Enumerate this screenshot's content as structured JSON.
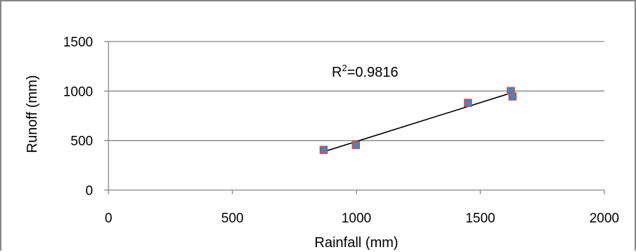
{
  "chart_data": {
    "type": "scatter",
    "title": "",
    "xlabel": "Rainfall (mm)",
    "ylabel": "Runoff (mm)",
    "xlim": [
      0,
      2000
    ],
    "ylim": [
      0,
      1500
    ],
    "x_ticks": [
      0,
      500,
      1000,
      1500,
      2000
    ],
    "y_ticks": [
      0,
      500,
      1000,
      1500
    ],
    "grid": "horizontal",
    "legend": "none",
    "series": [
      {
        "marker_fill": "#4f81bd",
        "marker_edge": "#c0504d",
        "points": [
          {
            "x": 868,
            "y": 405
          },
          {
            "x": 998,
            "y": 455
          },
          {
            "x": 1450,
            "y": 880
          },
          {
            "x": 1623,
            "y": 1000
          },
          {
            "x": 1630,
            "y": 945
          }
        ]
      }
    ],
    "trendline": {
      "x": [
        868,
        1630
      ],
      "y": [
        387,
        985
      ],
      "color": "#000000"
    },
    "annotations": [
      {
        "text_base": "R",
        "superscript": "2",
        "text_rest": "=0.9816",
        "x": 1000,
        "y": 1145
      }
    ]
  }
}
